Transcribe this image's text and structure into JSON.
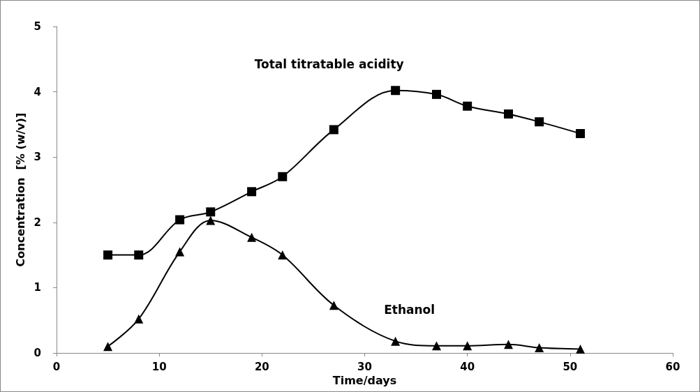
{
  "chart_data": {
    "type": "line",
    "xlabel": "Time/days",
    "ylabel": "Concentration  [% (w/v)]",
    "x": [
      5,
      8,
      12,
      15,
      19,
      22,
      27,
      33,
      37,
      40,
      44,
      47,
      51
    ],
    "series": [
      {
        "name": "Total titratable acidity",
        "color": "#000000",
        "marker": "square",
        "values": [
          1.5,
          1.5,
          2.04,
          2.16,
          2.47,
          2.7,
          3.42,
          4.02,
          3.96,
          3.78,
          3.66,
          3.54,
          3.36
        ]
      },
      {
        "name": "Ethanol",
        "color": "#000000",
        "marker": "triangle",
        "values": [
          0.1,
          0.52,
          1.55,
          2.03,
          1.77,
          1.5,
          0.73,
          0.18,
          0.11,
          0.11,
          0.13,
          0.08,
          0.06
        ]
      }
    ],
    "xlim": [
      0,
      60
    ],
    "xticks": [
      0,
      10,
      20,
      30,
      40,
      50,
      60
    ],
    "ylim": [
      0,
      5
    ],
    "yticks": [
      0,
      1,
      2,
      3,
      4,
      5
    ],
    "grid": false,
    "legend": false,
    "line_style": "solid"
  }
}
